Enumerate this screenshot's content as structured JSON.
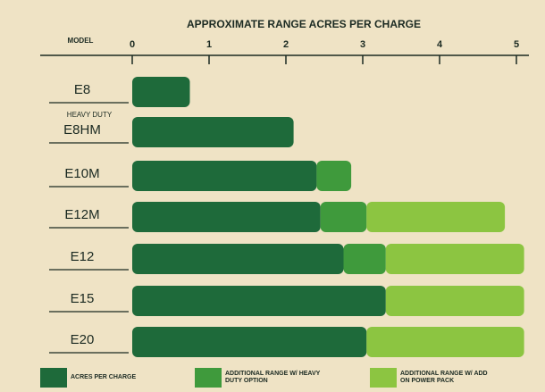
{
  "chart_data": {
    "type": "stacked-bar-horizontal",
    "title": "APPROXIMATE RANGE ACRES PER CHARGE",
    "category_header": "MODEL",
    "annotations": [
      {
        "text": "HEAVY DUTY",
        "category_index": 1
      }
    ],
    "categories": [
      "E8",
      "E8HM",
      "E10M",
      "E12M",
      "E12",
      "E15",
      "E20"
    ],
    "series": [
      {
        "name": "ACRES PER CHARGE",
        "color": "#1e6a3a",
        "values": [
          0.75,
          2.1,
          2.4,
          2.45,
          2.75,
          3.3,
          3.05
        ]
      },
      {
        "name": "ADDITIONAL RANGE W/ HEAVY DUTY OPTION",
        "color": "#3f9a3c",
        "values": [
          null,
          null,
          0.45,
          0.6,
          0.55,
          null,
          null
        ]
      },
      {
        "name": "ADDITIONAL RANGE W/ ADD ON POWER PACK",
        "color": "#8cc541",
        "values": [
          null,
          null,
          null,
          1.8,
          1.8,
          1.8,
          2.05
        ]
      }
    ],
    "xlim": [
      0,
      5.2
    ],
    "xticks": [
      0,
      1,
      2,
      3,
      4,
      5
    ]
  }
}
